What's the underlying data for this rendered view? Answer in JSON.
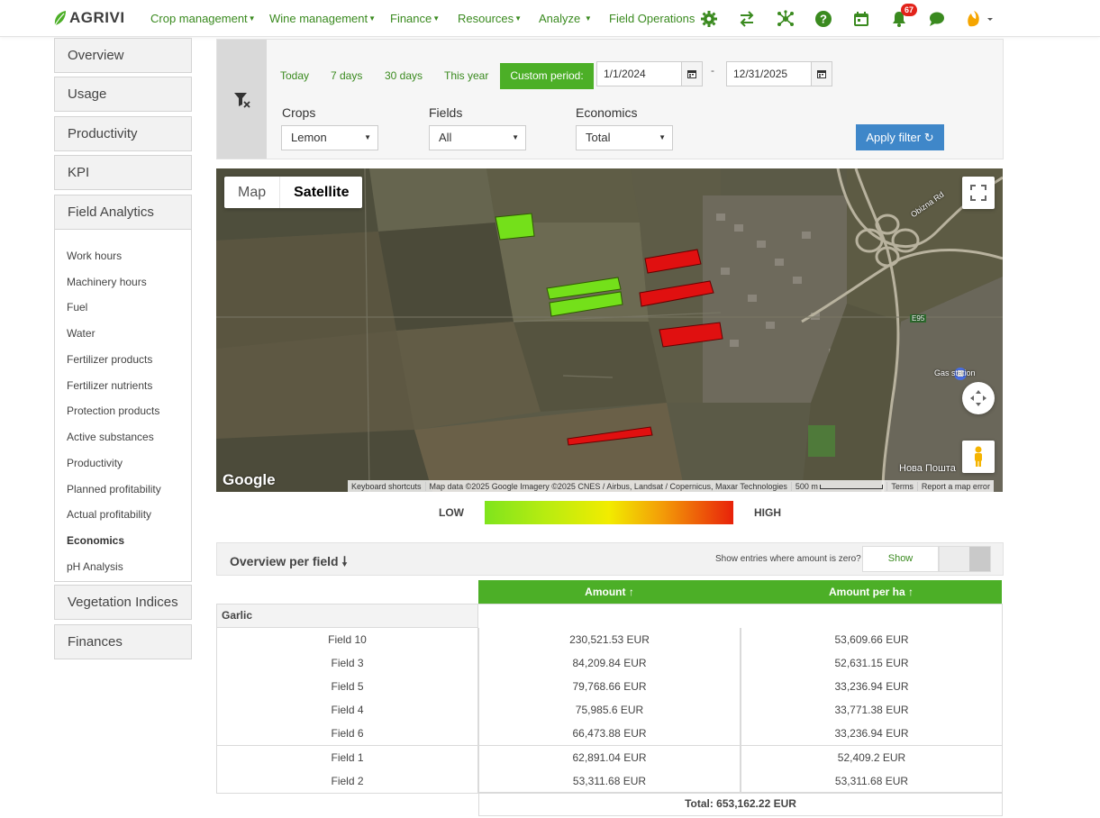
{
  "app": {
    "logo_text": "AGRIVI"
  },
  "nav": {
    "items": [
      {
        "label": "Crop management",
        "caret": "▼"
      },
      {
        "label": "Wine management",
        "caret": "▼"
      },
      {
        "label": "Finance",
        "caret": "▼"
      },
      {
        "label": "Resources",
        "caret": "▼"
      },
      {
        "label": "Analyze",
        "caret": "▼"
      },
      {
        "label": "Field Operations",
        "caret": ""
      }
    ],
    "icons": [
      "gear-icon",
      "sync-arrows-icon",
      "network-icon",
      "help-icon",
      "calendar-icon",
      "bell-icon",
      "chat-icon",
      "user-avatar-icon"
    ],
    "notification_count": "67"
  },
  "sidebar": {
    "sections": [
      "Overview",
      "Usage",
      "Productivity",
      "KPI",
      "Field Analytics"
    ],
    "links": [
      "Work hours",
      "Machinery hours",
      "Fuel",
      "Water",
      "Fertilizer products",
      "Fertilizer nutrients",
      "Protection products",
      "Active substances",
      "Productivity",
      "Planned profitability",
      "Actual profitability",
      "Economics",
      "pH Analysis"
    ],
    "active_link": "Economics",
    "bottom_sections": [
      "Vegetation Indices",
      "Finances"
    ]
  },
  "filter": {
    "periods": [
      "Today",
      "7 days",
      "30 days",
      "This year"
    ],
    "custom_label": "Custom period:",
    "date_from": "1/1/2024",
    "date_separator": "-",
    "date_to": "12/31/2025",
    "crops_label": "Crops",
    "crops_value": "Lemon",
    "fields_label": "Fields",
    "fields_value": "All",
    "economics_label": "Economics",
    "economics_value": "Total",
    "apply_label": "Apply filter"
  },
  "map": {
    "type_map": "Map",
    "type_satellite": "Satellite",
    "google_label": "Google",
    "attribution": [
      "Keyboard shortcuts",
      "Map data ©2025 Google Imagery ©2025 CNES / Airbus, Landsat / Copernicus, Maxar Technologies",
      "500 m",
      "Terms",
      "Report a map error"
    ],
    "labels": {
      "road": "Obizna Rd",
      "highway": "E95",
      "gas": "Gas station",
      "post": "Нова Пошта"
    }
  },
  "legend": {
    "low": "LOW",
    "high": "HIGH",
    "colors": [
      "#7fe41d",
      "#f2ec00",
      "#e8220a"
    ]
  },
  "overview": {
    "title": "Overview per field",
    "zero_label": "Show entries where amount is zero?",
    "show_label": "Show"
  },
  "table": {
    "col_amount": "Amount ↑",
    "col_per_ha": "Amount per ha ↑",
    "group": "Garlic",
    "rows": [
      {
        "field": "Field 10",
        "amount": "230,521.53 EUR",
        "per_ha": "53,609.66 EUR"
      },
      {
        "field": "Field 3",
        "amount": "84,209.84 EUR",
        "per_ha": "52,631.15 EUR"
      },
      {
        "field": "Field 5",
        "amount": "79,768.66 EUR",
        "per_ha": "33,236.94 EUR"
      },
      {
        "field": "Field 4",
        "amount": "75,985.6 EUR",
        "per_ha": "33,771.38 EUR"
      },
      {
        "field": "Field 6",
        "amount": "66,473.88 EUR",
        "per_ha": "33,236.94 EUR"
      },
      {
        "field": "Field 1",
        "amount": "62,891.04 EUR",
        "per_ha": "52,409.2 EUR"
      },
      {
        "field": "Field 2",
        "amount": "53,311.68 EUR",
        "per_ha": "53,311.68 EUR"
      }
    ],
    "total": "Total: 653,162.22 EUR"
  }
}
